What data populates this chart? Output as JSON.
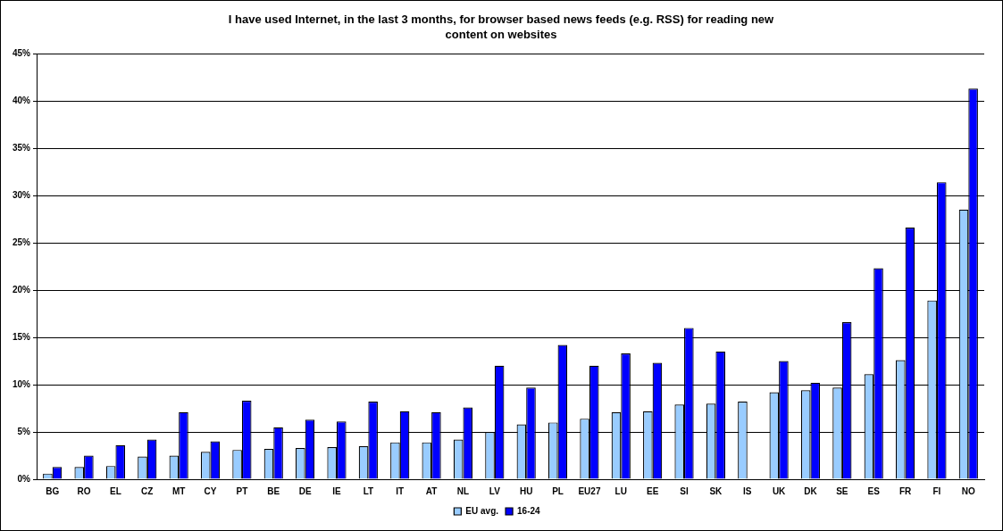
{
  "chart_data": {
    "type": "bar",
    "title": "I have used Internet, in the last 3 months, for browser based news feeds (e.g. RSS) for reading new content on websites",
    "categories": [
      "BG",
      "RO",
      "EL",
      "CZ",
      "MT",
      "CY",
      "PT",
      "BE",
      "DE",
      "IE",
      "LT",
      "IT",
      "AT",
      "NL",
      "LV",
      "HU",
      "PL",
      "EU27",
      "LU",
      "EE",
      "SI",
      "SK",
      "IS",
      "UK",
      "DK",
      "SE",
      "ES",
      "FR",
      "FI",
      "NO"
    ],
    "series": [
      {
        "name": "EU avg.",
        "color": "#99ccff",
        "values": [
          0.6,
          1.3,
          1.4,
          2.4,
          2.5,
          2.9,
          3.1,
          3.2,
          3.3,
          3.4,
          3.5,
          3.9,
          3.9,
          4.2,
          5.0,
          5.8,
          6.0,
          6.4,
          7.1,
          7.2,
          7.9,
          8.0,
          8.2,
          9.2,
          9.4,
          9.7,
          11.1,
          12.6,
          18.9,
          28.5
        ]
      },
      {
        "name": "16-24",
        "color": "#0000ff",
        "values": [
          1.3,
          2.5,
          3.6,
          4.2,
          7.1,
          4.0,
          8.3,
          5.5,
          6.3,
          6.1,
          8.2,
          7.2,
          7.1,
          7.6,
          12.0,
          9.7,
          14.2,
          12.0,
          13.3,
          12.3,
          16.0,
          13.5,
          null,
          12.5,
          10.2,
          16.6,
          22.3,
          26.6,
          31.4,
          41.3
        ]
      }
    ],
    "ylim": [
      0,
      45
    ],
    "yticks": [
      {
        "value": 0,
        "label": "0%"
      },
      {
        "value": 5,
        "label": "5%"
      },
      {
        "value": 10,
        "label": "10%"
      },
      {
        "value": 15,
        "label": "15%"
      },
      {
        "value": 20,
        "label": "20%"
      },
      {
        "value": 25,
        "label": "25%"
      },
      {
        "value": 30,
        "label": "30%"
      },
      {
        "value": 35,
        "label": "35%"
      },
      {
        "value": 40,
        "label": "40%"
      },
      {
        "value": 45,
        "label": "45%"
      }
    ],
    "grid": "y",
    "legend": "bottom"
  }
}
